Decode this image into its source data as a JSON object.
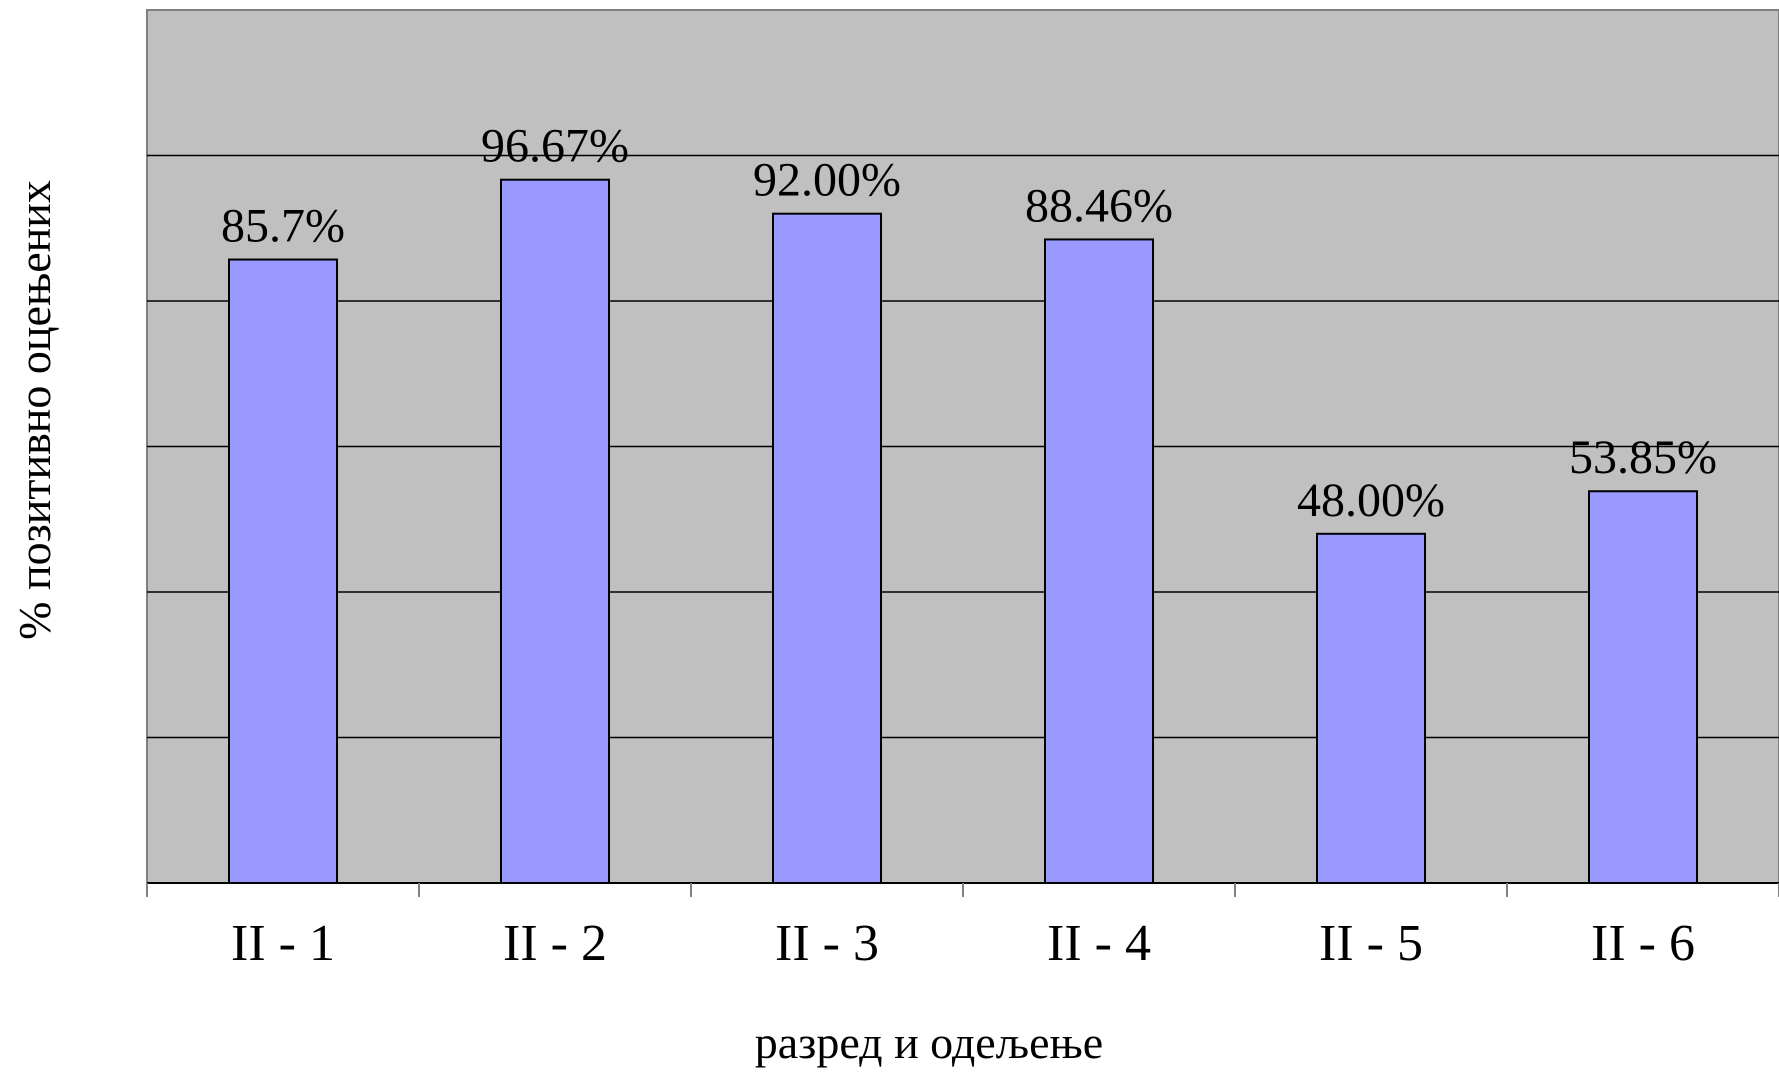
{
  "chart_data": {
    "type": "bar",
    "categories": [
      "II - 1",
      "II - 2",
      "II - 3",
      "II - 4",
      "II - 5",
      "II - 6"
    ],
    "values": [
      85.7,
      96.67,
      92.0,
      88.46,
      48.0,
      53.85
    ],
    "data_labels": [
      "85.7%",
      "96.67%",
      "92.00%",
      "88.46%",
      "48.00%",
      "53.85%"
    ],
    "title": "",
    "xlabel": "разред и одељење",
    "ylabel": "% позитивно оцењених",
    "ylim": [
      0,
      120
    ],
    "ytick_step": 20,
    "y_tick_labels_shown": false,
    "grid": true,
    "legend": "none",
    "colors": {
      "plot_background": "#c0c0c0",
      "bar_fill": "#9999ff",
      "bar_stroke": "#000000",
      "gridline": "#000000",
      "axis": "#808080"
    }
  }
}
